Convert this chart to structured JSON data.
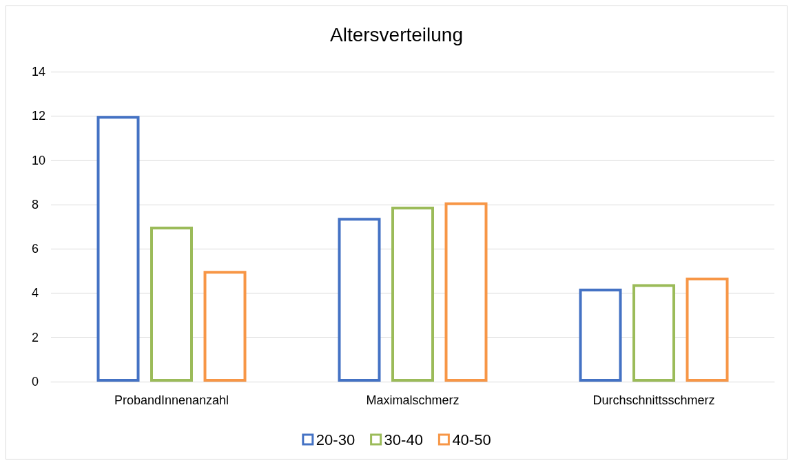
{
  "chart_data": {
    "type": "bar",
    "title": "Altersverteilung",
    "categories": [
      "ProbandInnenanzahl",
      "Maximalschmerz",
      "Durchschnittsschmerz"
    ],
    "series": [
      {
        "name": "20-30",
        "color": "#4472c4",
        "values": [
          12,
          7.4,
          4.2
        ]
      },
      {
        "name": "30-40",
        "color": "#9bbb59",
        "values": [
          7,
          7.9,
          4.4
        ]
      },
      {
        "name": "40-50",
        "color": "#f79646",
        "values": [
          5,
          8.1,
          4.7
        ]
      }
    ],
    "ylim": [
      0,
      14
    ],
    "yticks": [
      0,
      2,
      4,
      6,
      8,
      10,
      12,
      14
    ],
    "grid": "y",
    "legend": "bottom"
  }
}
